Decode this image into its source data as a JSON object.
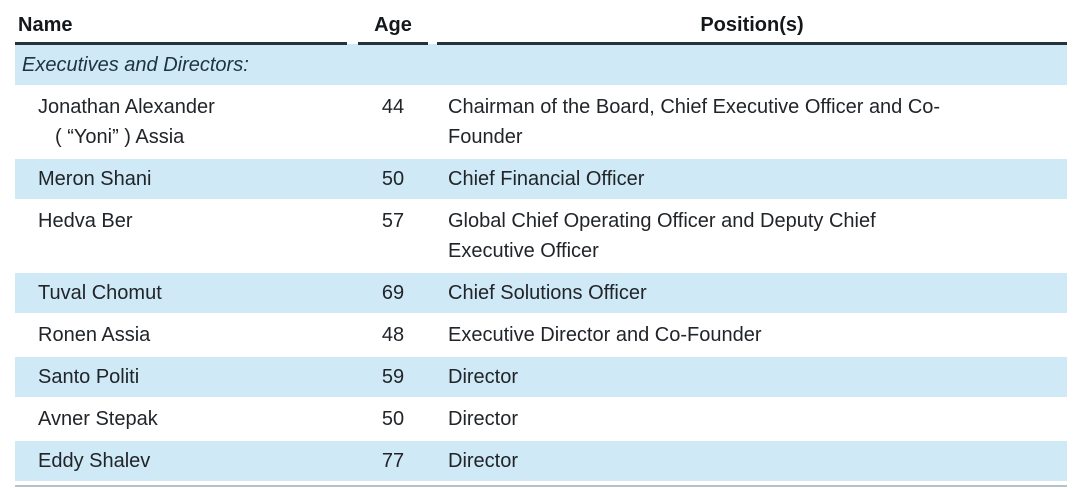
{
  "table": {
    "headers": {
      "name": "Name",
      "age": "Age",
      "positions": "Position(s)"
    },
    "section_label": "Executives and Directors:",
    "rows": [
      {
        "name": "Jonathan Alexander",
        "name_line2": "( “Yoni” ) Assia",
        "age": "44",
        "position": "Chairman of the Board, Chief Executive Officer and Co-\nFounder"
      },
      {
        "name": "Meron Shani",
        "name_line2": "",
        "age": "50",
        "position": "Chief Financial Officer"
      },
      {
        "name": "Hedva Ber",
        "name_line2": "",
        "age": "57",
        "position": "Global Chief Operating Officer and Deputy Chief\nExecutive Officer"
      },
      {
        "name": "Tuval Chomut",
        "name_line2": "",
        "age": "69",
        "position": "Chief Solutions Officer"
      },
      {
        "name": "Ronen Assia",
        "name_line2": "",
        "age": "48",
        "position": "Executive Director and Co-Founder"
      },
      {
        "name": "Santo Politi",
        "name_line2": "",
        "age": "59",
        "position": "Director"
      },
      {
        "name": "Avner Stepak",
        "name_line2": "",
        "age": "50",
        "position": "Director"
      },
      {
        "name": "Eddy Shalev",
        "name_line2": "",
        "age": "77",
        "position": "Director"
      }
    ],
    "colors": {
      "band_background": "#cfe9f6",
      "header_rule": "#24323a",
      "bottom_rule": "#b6c2c9",
      "section_text": "#1d3443",
      "body_text": "#212529"
    }
  }
}
